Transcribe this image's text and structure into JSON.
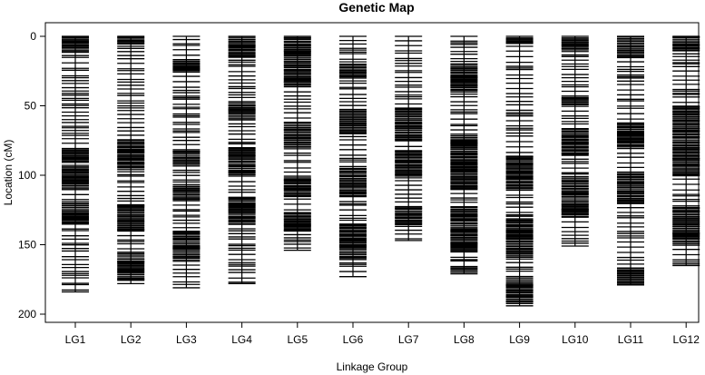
{
  "chart_data": {
    "type": "genetic-map",
    "title": "Genetic Map",
    "xlabel": "Linkage Group",
    "ylabel": "Location (cM)",
    "ylim": [
      0,
      200
    ],
    "y_reversed": true,
    "y_ticks": [
      0,
      50,
      100,
      150,
      200
    ],
    "categories": [
      "LG1",
      "LG2",
      "LG3",
      "LG4",
      "LG5",
      "LG6",
      "LG7",
      "LG8",
      "LG9",
      "LG10",
      "LG11",
      "LG12"
    ],
    "group_lengths": [
      184,
      178,
      181,
      178,
      154,
      173,
      147,
      171,
      194,
      151,
      179,
      165
    ],
    "dense_regions": [
      [
        [
          0,
          10
        ],
        [
          78,
          90
        ],
        [
          92,
          110
        ],
        [
          120,
          135
        ]
      ],
      [
        [
          0,
          5
        ],
        [
          72,
          95
        ],
        [
          120,
          140
        ],
        [
          160,
          175
        ]
      ],
      [
        [
          15,
          25
        ],
        [
          78,
          92
        ],
        [
          105,
          118
        ],
        [
          140,
          160
        ]
      ],
      [
        [
          0,
          15
        ],
        [
          45,
          60
        ],
        [
          80,
          100
        ],
        [
          115,
          135
        ]
      ],
      [
        [
          0,
          35
        ],
        [
          60,
          80
        ],
        [
          100,
          115
        ],
        [
          125,
          140
        ]
      ],
      [
        [
          20,
          30
        ],
        [
          50,
          70
        ],
        [
          95,
          115
        ],
        [
          135,
          160
        ]
      ],
      [
        [
          50,
          75
        ],
        [
          80,
          100
        ],
        [
          120,
          135
        ]
      ],
      [
        [
          20,
          40
        ],
        [
          70,
          110
        ],
        [
          120,
          155
        ],
        [
          165,
          172
        ]
      ],
      [
        [
          0,
          5
        ],
        [
          85,
          110
        ],
        [
          130,
          160
        ],
        [
          170,
          192
        ]
      ],
      [
        [
          0,
          10
        ],
        [
          40,
          50
        ],
        [
          65,
          85
        ],
        [
          100,
          130
        ]
      ],
      [
        [
          0,
          15
        ],
        [
          60,
          80
        ],
        [
          95,
          120
        ],
        [
          165,
          178
        ]
      ],
      [
        [
          0,
          10
        ],
        [
          50,
          100
        ],
        [
          120,
          150
        ]
      ]
    ]
  }
}
